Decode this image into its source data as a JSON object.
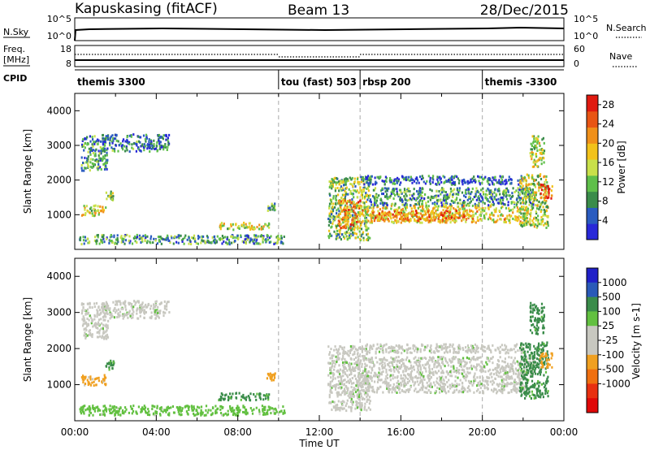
{
  "header": {
    "station": "Kapuskasing (fitACF)",
    "beam": "Beam 13",
    "date": "28/Dec/2015"
  },
  "strip": {
    "nsky_label": "N.Sky",
    "nsky_ticks": [
      "10^5",
      "10^0"
    ],
    "nsearch_label": "N.Search",
    "nsearch_ticks": [
      "10^5",
      "10^0"
    ],
    "freq_label_1": "Freq.",
    "freq_label_2": "[MHz]",
    "freq_ticks": [
      "18",
      "8"
    ],
    "nave_label": "Nave",
    "nave_ticks": [
      "60",
      "0"
    ],
    "cpid_label": "CPID"
  },
  "modes": [
    {
      "label": "themis 3300",
      "start": 0.0
    },
    {
      "label": "tou (fast) 503",
      "start": 10.0
    },
    {
      "label": "rbsp 200",
      "start": 14.0
    },
    {
      "label": "themis -3300",
      "start": 20.0
    }
  ],
  "colors": {
    "power": [
      "#2828d8",
      "#2a5cc0",
      "#3a8c4a",
      "#5fbf4a",
      "#c9e04a",
      "#f2c21a",
      "#f0901a",
      "#e85514",
      "#e01a10"
    ],
    "velocity": [
      "#2020c8",
      "#2a5ab8",
      "#3a8c4a",
      "#62c040",
      "#c8c8c0",
      "#c8c8c0",
      "#f0a020",
      "#f07010",
      "#e83010",
      "#e00808"
    ]
  },
  "chart_data": [
    {
      "type": "heatmap",
      "name": "power",
      "ylabel": "Slant Range [km]",
      "xlim": [
        0,
        24
      ],
      "ylim": [
        0,
        4500
      ],
      "yticks": [
        "1000",
        "2000",
        "3000",
        "4000"
      ],
      "colorbar": {
        "label": "Power [dB]",
        "ticks": [
          "4",
          "8",
          "12",
          "16",
          "20",
          "24",
          "28"
        ],
        "range": [
          0,
          30
        ]
      },
      "regions": [
        {
          "t0": 0.3,
          "t1": 1.6,
          "r0": 2300,
          "r1": 3300,
          "v": 9
        },
        {
          "t0": 1.3,
          "t1": 4.6,
          "r0": 2850,
          "r1": 3350,
          "v": 7
        },
        {
          "t0": 0.3,
          "t1": 1.5,
          "r0": 1000,
          "r1": 1300,
          "v": 16
        },
        {
          "t0": 1.5,
          "t1": 1.9,
          "r0": 1450,
          "r1": 1700,
          "v": 14
        },
        {
          "t0": 0.2,
          "t1": 10.3,
          "r0": 180,
          "r1": 450,
          "v": 9
        },
        {
          "t0": 7.0,
          "t1": 9.5,
          "r0": 600,
          "r1": 800,
          "v": 15
        },
        {
          "t0": 9.4,
          "t1": 9.8,
          "r0": 1150,
          "r1": 1350,
          "v": 11
        },
        {
          "t0": 12.4,
          "t1": 14.5,
          "r0": 300,
          "r1": 2100,
          "v": 12
        },
        {
          "t0": 12.9,
          "t1": 14.0,
          "r0": 650,
          "r1": 1450,
          "v": 22
        },
        {
          "t0": 13.8,
          "t1": 22.2,
          "r0": 800,
          "r1": 1300,
          "v": 17
        },
        {
          "t0": 14.5,
          "t1": 19.5,
          "r0": 850,
          "r1": 1150,
          "v": 22
        },
        {
          "t0": 14.5,
          "t1": 22.5,
          "r0": 1300,
          "r1": 1800,
          "v": 9
        },
        {
          "t0": 14.0,
          "t1": 22.0,
          "r0": 1900,
          "r1": 2150,
          "v": 6
        },
        {
          "t0": 21.8,
          "t1": 23.2,
          "r0": 650,
          "r1": 2200,
          "v": 14
        },
        {
          "t0": 22.8,
          "t1": 23.4,
          "r0": 1500,
          "r1": 1900,
          "v": 26
        },
        {
          "t0": 22.3,
          "t1": 23.0,
          "r0": 2400,
          "r1": 3300,
          "v": 14
        }
      ]
    },
    {
      "type": "heatmap",
      "name": "velocity",
      "ylabel": "Slant Range [km]",
      "xlabel": "Time UT",
      "xlim": [
        0,
        24
      ],
      "ylim": [
        0,
        4500
      ],
      "xticks": [
        "00:00",
        "04:00",
        "08:00",
        "12:00",
        "16:00",
        "20:00",
        "00:00"
      ],
      "yticks": [
        "1000",
        "2000",
        "3000",
        "4000"
      ],
      "colorbar": {
        "label": "Velocity [m s-1]",
        "ticks": [
          "1000",
          "500",
          "100",
          "25",
          "-25",
          "-100",
          "-500",
          "-1000"
        ]
      },
      "regions": [
        {
          "t0": 0.3,
          "t1": 1.6,
          "r0": 2300,
          "r1": 3300,
          "v": 0
        },
        {
          "t0": 1.3,
          "t1": 4.6,
          "r0": 2850,
          "r1": 3350,
          "v": 0
        },
        {
          "t0": 0.3,
          "t1": 1.5,
          "r0": 1000,
          "r1": 1300,
          "v": -200
        },
        {
          "t0": 1.5,
          "t1": 1.9,
          "r0": 1450,
          "r1": 1700,
          "v": 150
        },
        {
          "t0": 0.2,
          "t1": 10.3,
          "r0": 180,
          "r1": 450,
          "v": 60
        },
        {
          "t0": 7.0,
          "t1": 9.5,
          "r0": 600,
          "r1": 800,
          "v": 150
        },
        {
          "t0": 9.4,
          "t1": 9.8,
          "r0": 1150,
          "r1": 1350,
          "v": -300
        },
        {
          "t0": 12.4,
          "t1": 14.5,
          "r0": 300,
          "r1": 2100,
          "v": 0
        },
        {
          "t0": 13.8,
          "t1": 22.2,
          "r0": 800,
          "r1": 1300,
          "v": 0
        },
        {
          "t0": 14.5,
          "t1": 22.5,
          "r0": 1300,
          "r1": 1800,
          "v": 0
        },
        {
          "t0": 14.0,
          "t1": 22.0,
          "r0": 1900,
          "r1": 2150,
          "v": 0
        },
        {
          "t0": 21.8,
          "t1": 23.2,
          "r0": 650,
          "r1": 2200,
          "v": 200
        },
        {
          "t0": 22.8,
          "t1": 23.4,
          "r0": 1500,
          "r1": 1900,
          "v": -300
        },
        {
          "t0": 22.3,
          "t1": 23.0,
          "r0": 2400,
          "r1": 3300,
          "v": 200
        }
      ]
    }
  ]
}
